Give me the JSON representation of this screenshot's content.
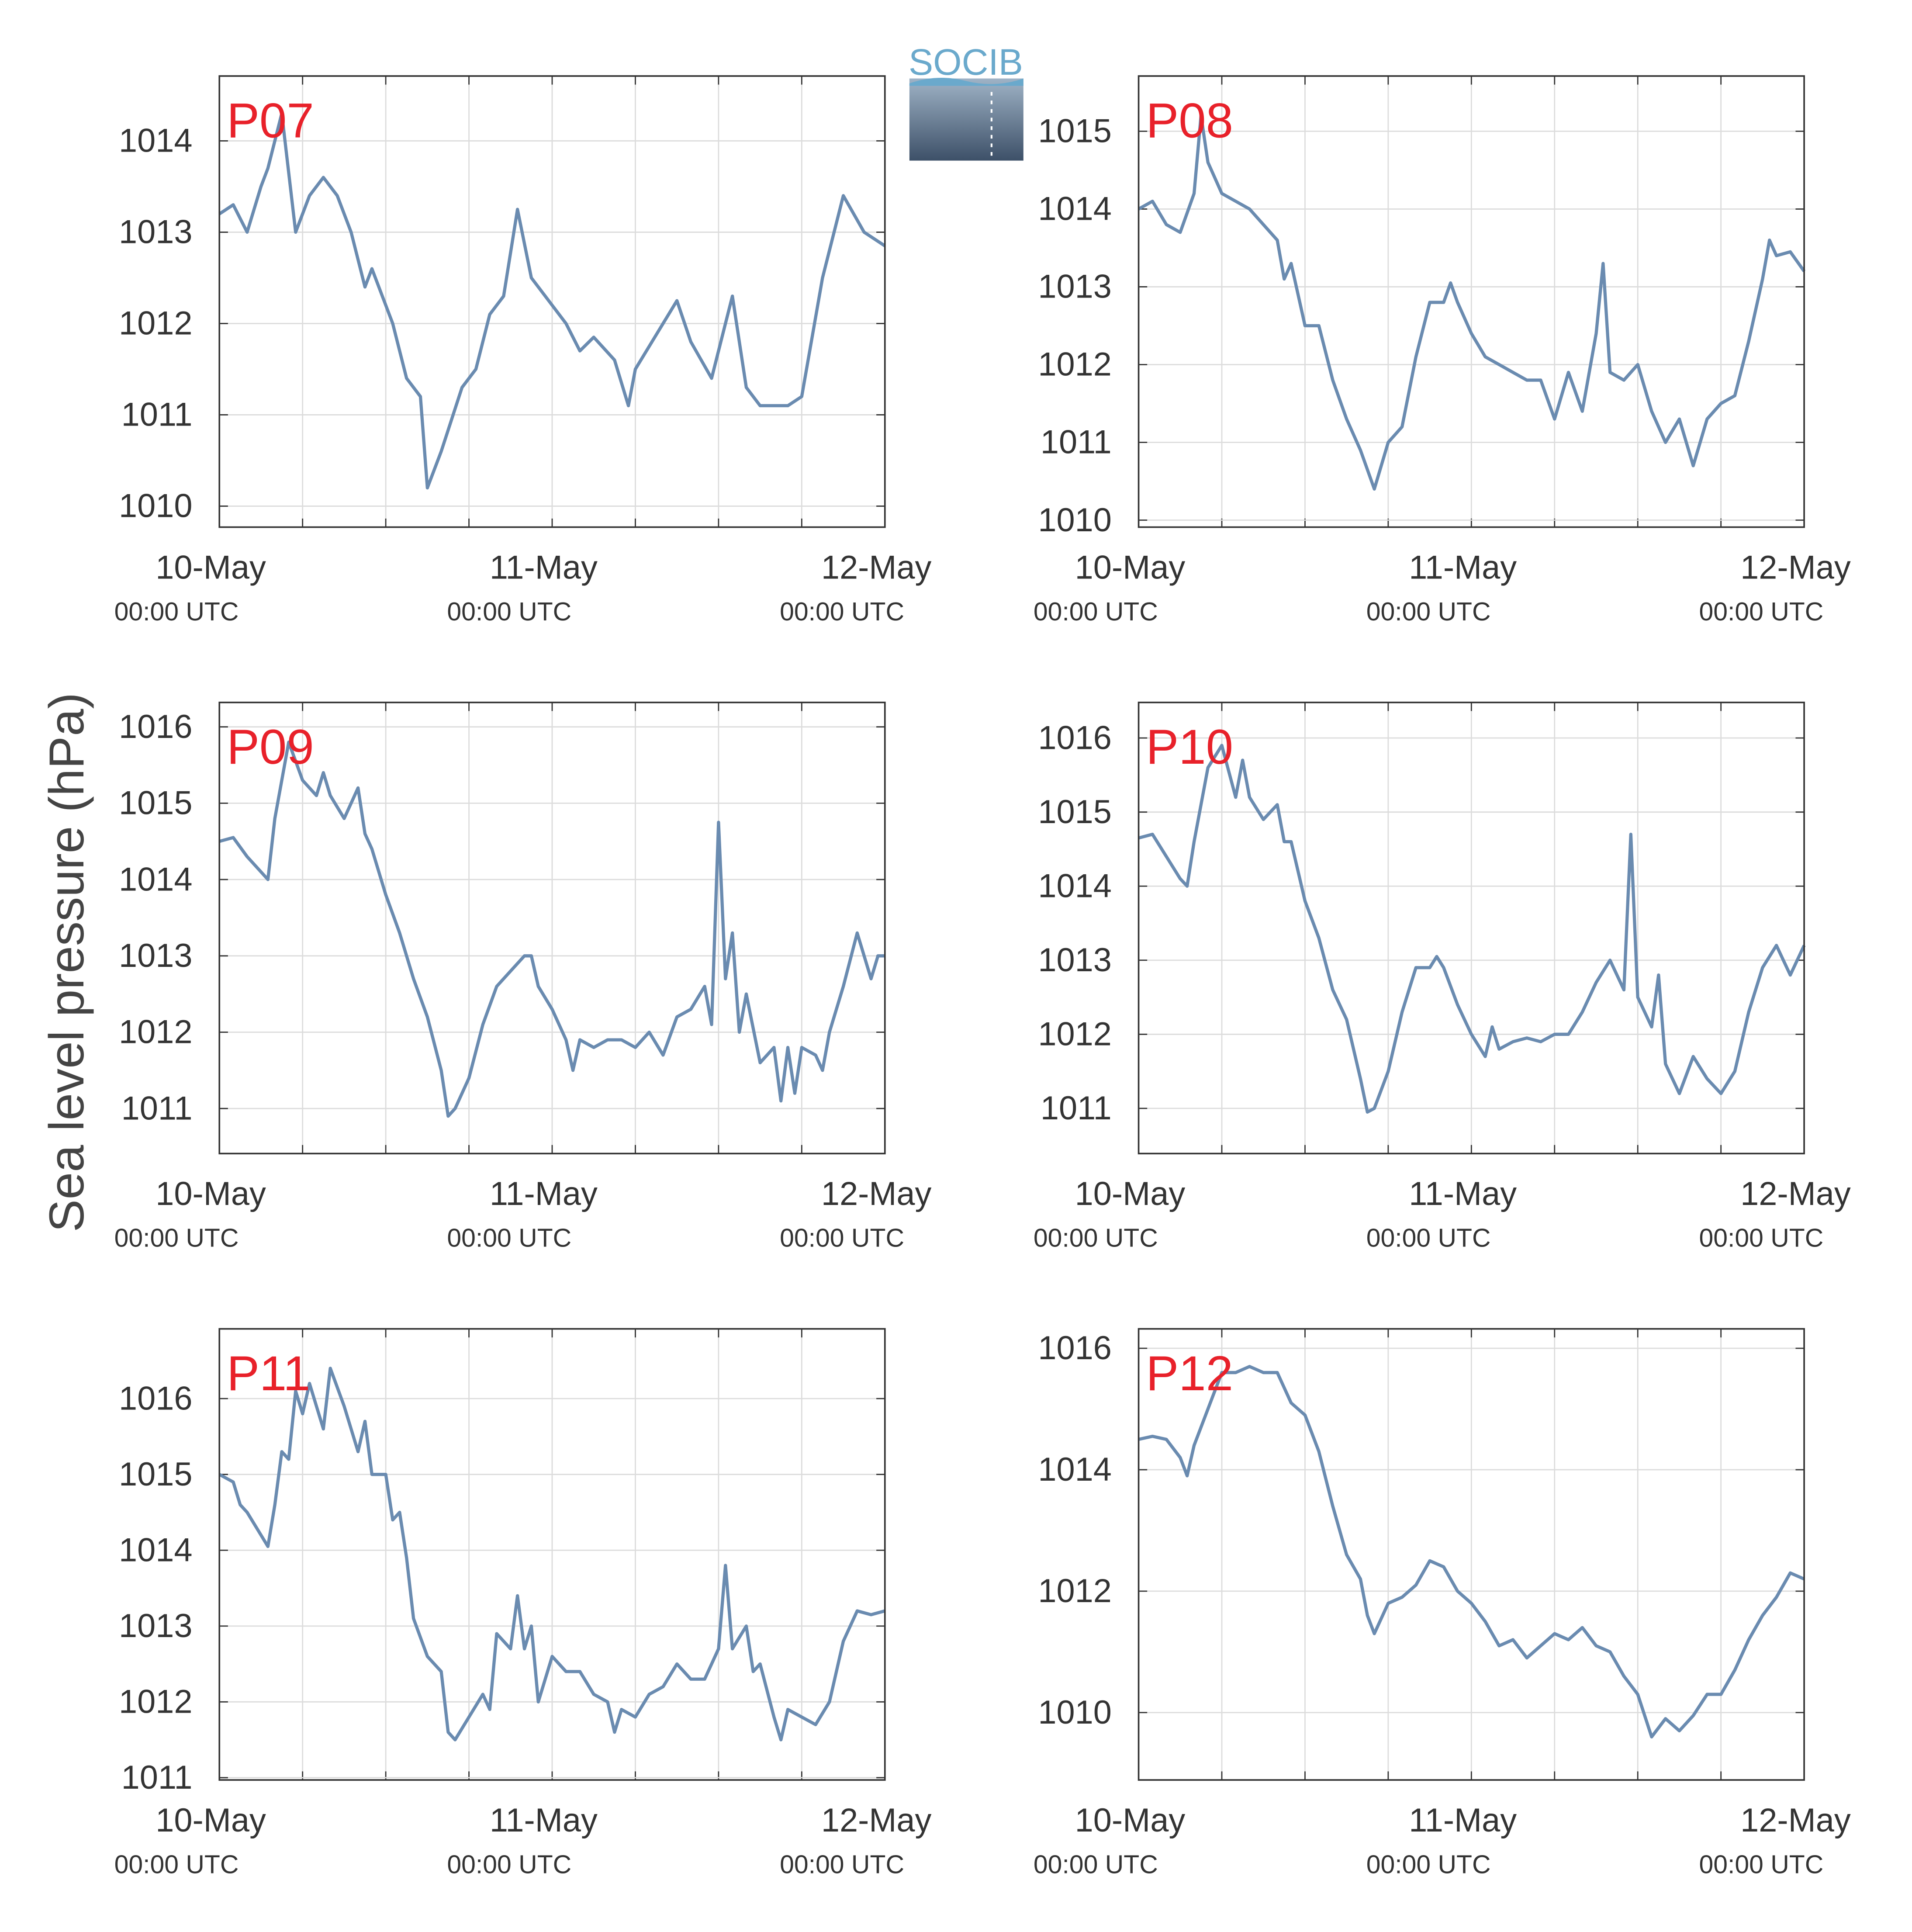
{
  "ylabel": "Sea level pressure (hPa)",
  "logo": "SOCIB",
  "chart_data": [
    {
      "type": "line",
      "title": "P07",
      "color": "#6a8bb0",
      "grid": true,
      "xlim": [
        0,
        48
      ],
      "ylim": [
        1009.77,
        1014.71
      ],
      "xticks": [
        {
          "value": 0,
          "label": "10-May",
          "sublabel": "00:00 UTC"
        },
        {
          "value": 24,
          "label": "11-May",
          "sublabel": "00:00 UTC"
        },
        {
          "value": 48,
          "label": "12-May",
          "sublabel": "00:00 UTC"
        }
      ],
      "xminor": [
        6,
        12,
        18,
        30,
        36,
        42
      ],
      "yticks": [
        1010,
        1011,
        1012,
        1013,
        1014
      ],
      "x": [
        0,
        1,
        2,
        3,
        3.5,
        4.5,
        5.5,
        6.5,
        7.5,
        8.5,
        9.5,
        10.5,
        11,
        12.5,
        13.5,
        14.5,
        15,
        16,
        17.5,
        18.5,
        19.5,
        20.5,
        21.5,
        22.5,
        23.5,
        25,
        26,
        27,
        28.5,
        29.5,
        30,
        32,
        33,
        34,
        35.5,
        37,
        38,
        39,
        41,
        42,
        43.5,
        45,
        46.5,
        48
      ],
      "values": [
        1013.2,
        1013.3,
        1013.0,
        1013.5,
        1013.7,
        1014.3,
        1013.0,
        1013.4,
        1013.6,
        1013.4,
        1013.0,
        1012.4,
        1012.6,
        1012.0,
        1011.4,
        1011.2,
        1010.2,
        1010.6,
        1011.3,
        1011.5,
        1012.1,
        1012.3,
        1013.25,
        1012.5,
        1012.3,
        1012.0,
        1011.7,
        1011.85,
        1011.6,
        1011.1,
        1011.5,
        1012.0,
        1012.25,
        1011.8,
        1011.4,
        1012.3,
        1011.3,
        1011.1,
        1011.1,
        1011.2,
        1012.5,
        1013.4,
        1013.0,
        1012.85
      ]
    },
    {
      "type": "line",
      "title": "P08",
      "color": "#6a8bb0",
      "grid": true,
      "xlim": [
        0,
        48
      ],
      "ylim": [
        1009.91,
        1015.71
      ],
      "xticks": [
        {
          "value": 0,
          "label": "10-May",
          "sublabel": "00:00 UTC"
        },
        {
          "value": 24,
          "label": "11-May",
          "sublabel": "00:00 UTC"
        },
        {
          "value": 48,
          "label": "12-May",
          "sublabel": "00:00 UTC"
        }
      ],
      "xminor": [
        6,
        12,
        18,
        30,
        36,
        42
      ],
      "yticks": [
        1010,
        1011,
        1012,
        1013,
        1014,
        1015
      ],
      "x": [
        0,
        1,
        2,
        3,
        4,
        4.5,
        5,
        6,
        7,
        8,
        9,
        10,
        10.5,
        11,
        12,
        13,
        14,
        15,
        16,
        17,
        18,
        19,
        20,
        21,
        22,
        22.5,
        23,
        24,
        25,
        26,
        27,
        28,
        29,
        30,
        31,
        32,
        33,
        33.5,
        34,
        35,
        36,
        37,
        38,
        39,
        40,
        41,
        42,
        43,
        44,
        45,
        45.5,
        46,
        47,
        48
      ],
      "values": [
        1014.0,
        1014.1,
        1013.8,
        1013.7,
        1014.2,
        1015.2,
        1014.6,
        1014.2,
        1014.1,
        1014.0,
        1013.8,
        1013.6,
        1013.1,
        1013.3,
        1012.5,
        1012.5,
        1011.8,
        1011.3,
        1010.9,
        1010.4,
        1011.0,
        1011.2,
        1012.1,
        1012.8,
        1012.8,
        1013.05,
        1012.8,
        1012.4,
        1012.1,
        1012.0,
        1011.9,
        1011.8,
        1011.8,
        1011.3,
        1011.9,
        1011.4,
        1012.4,
        1013.3,
        1011.9,
        1011.8,
        1012.0,
        1011.4,
        1011.0,
        1011.3,
        1010.7,
        1011.3,
        1011.5,
        1011.6,
        1012.3,
        1013.1,
        1013.6,
        1013.4,
        1013.45,
        1013.2
      ]
    },
    {
      "type": "line",
      "title": "P09",
      "color": "#6a8bb0",
      "grid": true,
      "xlim": [
        0,
        48
      ],
      "ylim": [
        1010.41,
        1016.32
      ],
      "xticks": [
        {
          "value": 0,
          "label": "10-May",
          "sublabel": "00:00 UTC"
        },
        {
          "value": 24,
          "label": "11-May",
          "sublabel": "00:00 UTC"
        },
        {
          "value": 48,
          "label": "12-May",
          "sublabel": "00:00 UTC"
        }
      ],
      "xminor": [
        6,
        12,
        18,
        30,
        36,
        42
      ],
      "yticks": [
        1011,
        1012,
        1013,
        1014,
        1015,
        1016
      ],
      "x": [
        0,
        1,
        2,
        3,
        3.5,
        4,
        4.5,
        5,
        6,
        7,
        7.5,
        8,
        9,
        10,
        10.5,
        11,
        12,
        13,
        14,
        15,
        16,
        16.5,
        17,
        18,
        19,
        20,
        21,
        22,
        22.5,
        23,
        24,
        25,
        25.5,
        26,
        27,
        28,
        29,
        30,
        31,
        32,
        33,
        34,
        35,
        35.5,
        36,
        36.5,
        37,
        37.5,
        38,
        39,
        40,
        40.5,
        41,
        41.5,
        42,
        43,
        43.5,
        44,
        45,
        46,
        47,
        47.5,
        48
      ],
      "values": [
        1014.5,
        1014.55,
        1014.3,
        1014.1,
        1014.0,
        1014.8,
        1015.3,
        1015.8,
        1015.3,
        1015.1,
        1015.4,
        1015.1,
        1014.8,
        1015.2,
        1014.6,
        1014.4,
        1013.8,
        1013.3,
        1012.7,
        1012.2,
        1011.5,
        1010.9,
        1011.0,
        1011.4,
        1012.1,
        1012.6,
        1012.8,
        1013.0,
        1013.0,
        1012.6,
        1012.3,
        1011.9,
        1011.5,
        1011.9,
        1011.8,
        1011.9,
        1011.9,
        1011.8,
        1012.0,
        1011.7,
        1012.2,
        1012.3,
        1012.6,
        1012.1,
        1014.75,
        1012.7,
        1013.3,
        1012.0,
        1012.5,
        1011.6,
        1011.8,
        1011.1,
        1011.8,
        1011.2,
        1011.8,
        1011.7,
        1011.5,
        1012.0,
        1012.6,
        1013.3,
        1012.7,
        1013.0,
        1013.0
      ]
    },
    {
      "type": "line",
      "title": "P10",
      "color": "#6a8bb0",
      "grid": true,
      "xlim": [
        0,
        48
      ],
      "ylim": [
        1010.39,
        1016.48
      ],
      "xticks": [
        {
          "value": 0,
          "label": "10-May",
          "sublabel": "00:00 UTC"
        },
        {
          "value": 24,
          "label": "11-May",
          "sublabel": "00:00 UTC"
        },
        {
          "value": 48,
          "label": "12-May",
          "sublabel": "00:00 UTC"
        }
      ],
      "xminor": [
        6,
        12,
        18,
        30,
        36,
        42
      ],
      "yticks": [
        1011,
        1012,
        1013,
        1014,
        1015,
        1016
      ],
      "x": [
        0,
        1,
        2,
        3,
        3.5,
        4,
        5,
        6,
        7,
        7.5,
        8,
        9,
        10,
        10.5,
        11,
        12,
        13,
        14,
        15,
        16,
        16.5,
        17,
        18,
        19,
        20,
        21,
        21.5,
        22,
        23,
        24,
        25,
        25.5,
        26,
        27,
        28,
        29,
        30,
        31,
        32,
        33,
        34,
        35,
        35.5,
        36,
        37,
        37.5,
        38,
        39,
        40,
        41,
        42,
        43,
        44,
        45,
        46,
        47,
        48
      ],
      "values": [
        1014.65,
        1014.7,
        1014.4,
        1014.1,
        1014.0,
        1014.6,
        1015.6,
        1015.9,
        1015.2,
        1015.7,
        1015.2,
        1014.9,
        1015.1,
        1014.6,
        1014.6,
        1013.8,
        1013.3,
        1012.6,
        1012.2,
        1011.4,
        1010.95,
        1011.0,
        1011.5,
        1012.3,
        1012.9,
        1012.9,
        1013.05,
        1012.9,
        1012.4,
        1012.0,
        1011.7,
        1012.1,
        1011.8,
        1011.9,
        1011.95,
        1011.9,
        1012.0,
        1012.0,
        1012.3,
        1012.7,
        1013.0,
        1012.6,
        1014.7,
        1012.5,
        1012.1,
        1012.8,
        1011.6,
        1011.2,
        1011.7,
        1011.4,
        1011.2,
        1011.5,
        1012.3,
        1012.9,
        1013.2,
        1012.8,
        1013.2
      ]
    },
    {
      "type": "line",
      "title": "P11",
      "color": "#6a8bb0",
      "grid": true,
      "xlim": [
        0,
        48
      ],
      "ylim": [
        1010.97,
        1016.92
      ],
      "xticks": [
        {
          "value": 0,
          "label": "10-May",
          "sublabel": "00:00 UTC"
        },
        {
          "value": 24,
          "label": "11-May",
          "sublabel": "00:00 UTC"
        },
        {
          "value": 48,
          "label": "12-May",
          "sublabel": "00:00 UTC"
        }
      ],
      "xminor": [
        6,
        12,
        18,
        30,
        36,
        42
      ],
      "yticks": [
        1011,
        1012,
        1013,
        1014,
        1015,
        1016
      ],
      "x": [
        0,
        1,
        1.5,
        2,
        3,
        3.5,
        4,
        4.5,
        5,
        5.5,
        6,
        6.5,
        7,
        7.5,
        8,
        9,
        10,
        10.5,
        11,
        12,
        12.5,
        13,
        13.5,
        14,
        15,
        16,
        16.5,
        17,
        18,
        19,
        19.5,
        20,
        21,
        21.5,
        22,
        22.5,
        23,
        24,
        25,
        26,
        27,
        28,
        28.5,
        29,
        30,
        31,
        32,
        33,
        34,
        35,
        36,
        36.5,
        37,
        38,
        38.5,
        39,
        40,
        40.5,
        41,
        42,
        43,
        44,
        45,
        46,
        47,
        48
      ],
      "values": [
        1015.0,
        1014.9,
        1014.6,
        1014.5,
        1014.2,
        1014.05,
        1014.6,
        1015.3,
        1015.2,
        1016.1,
        1015.8,
        1016.2,
        1015.9,
        1015.6,
        1016.4,
        1015.9,
        1015.3,
        1015.7,
        1015.0,
        1015.0,
        1014.4,
        1014.5,
        1013.9,
        1013.1,
        1012.6,
        1012.4,
        1011.6,
        1011.5,
        1011.8,
        1012.1,
        1011.9,
        1012.9,
        1012.7,
        1013.4,
        1012.7,
        1013.0,
        1012.0,
        1012.6,
        1012.4,
        1012.4,
        1012.1,
        1012.0,
        1011.6,
        1011.9,
        1011.8,
        1012.1,
        1012.2,
        1012.5,
        1012.3,
        1012.3,
        1012.7,
        1013.8,
        1012.7,
        1013.0,
        1012.4,
        1012.5,
        1011.8,
        1011.5,
        1011.9,
        1011.8,
        1011.7,
        1012.0,
        1012.8,
        1013.2,
        1013.15,
        1013.2
      ]
    },
    {
      "type": "line",
      "title": "P12",
      "color": "#6a8bb0",
      "grid": true,
      "xlim": [
        0,
        48
      ],
      "ylim": [
        1008.89,
        1016.32
      ],
      "xticks": [
        {
          "value": 0,
          "label": "10-May",
          "sublabel": "00:00 UTC"
        },
        {
          "value": 24,
          "label": "11-May",
          "sublabel": "00:00 UTC"
        },
        {
          "value": 48,
          "label": "12-May",
          "sublabel": "00:00 UTC"
        }
      ],
      "xminor": [
        6,
        12,
        18,
        30,
        36,
        42
      ],
      "yticks": [
        1010,
        1012,
        1014,
        1016
      ],
      "x": [
        0,
        1,
        2,
        3,
        3.5,
        4,
        5,
        6,
        7,
        8,
        9,
        10,
        11,
        12,
        13,
        14,
        15,
        16,
        16.5,
        17,
        18,
        19,
        20,
        21,
        22,
        23,
        24,
        25,
        26,
        27,
        28,
        29,
        30,
        31,
        32,
        33,
        34,
        35,
        36,
        37,
        38,
        39,
        40,
        41,
        42,
        43,
        44,
        45,
        46,
        47,
        48
      ],
      "values": [
        1014.5,
        1014.55,
        1014.5,
        1014.2,
        1013.9,
        1014.4,
        1015.0,
        1015.6,
        1015.6,
        1015.7,
        1015.6,
        1015.6,
        1015.1,
        1014.9,
        1014.3,
        1013.4,
        1012.6,
        1012.2,
        1011.6,
        1011.3,
        1011.8,
        1011.9,
        1012.1,
        1012.5,
        1012.4,
        1012.0,
        1011.8,
        1011.5,
        1011.1,
        1011.2,
        1010.9,
        1011.1,
        1011.3,
        1011.2,
        1011.4,
        1011.1,
        1011.0,
        1010.6,
        1010.3,
        1009.6,
        1009.9,
        1009.7,
        1009.95,
        1010.3,
        1010.3,
        1010.7,
        1011.2,
        1011.6,
        1011.9,
        1012.3,
        1012.2
      ]
    }
  ]
}
